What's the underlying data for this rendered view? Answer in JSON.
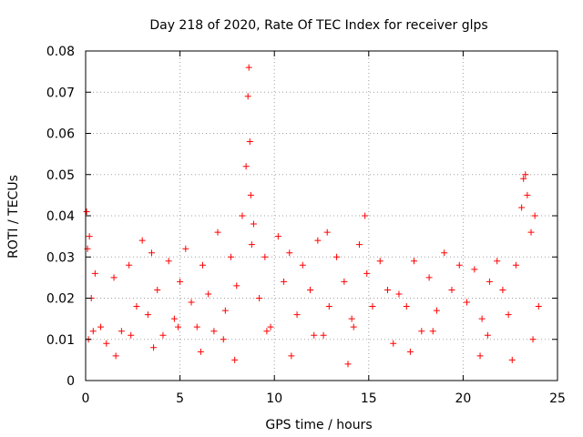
{
  "chart_data": {
    "type": "scatter",
    "title": "Day 218 of 2020, Rate Of TEC Index for receiver glps",
    "xlabel": "GPS time / hours",
    "ylabel": "ROTI / TECUs",
    "xlim": [
      0,
      25
    ],
    "ylim": [
      0,
      0.08
    ],
    "x_ticks": [
      0,
      5,
      10,
      15,
      20,
      25
    ],
    "x_tick_labels": [
      "0",
      "5",
      "10",
      "15",
      "20",
      "25"
    ],
    "y_ticks": [
      0,
      0.01,
      0.02,
      0.03,
      0.04,
      0.05,
      0.06,
      0.07,
      0.08
    ],
    "y_tick_labels": [
      "0",
      "0.01",
      "0.02",
      "0.03",
      "0.04",
      "0.05",
      "0.06",
      "0.07",
      "0.08"
    ],
    "grid": true,
    "marker": "+",
    "series": [
      {
        "name": "ROTI",
        "color": "#ff0000",
        "x": [
          0.05,
          0.1,
          0.2,
          0.3,
          0.5,
          0.8,
          1.1,
          1.5,
          1.9,
          2.3,
          2.7,
          3.0,
          3.3,
          3.5,
          3.8,
          4.1,
          4.4,
          4.7,
          5.0,
          5.3,
          5.6,
          5.9,
          6.2,
          6.5,
          6.8,
          7.0,
          7.4,
          7.7,
          8.0,
          8.3,
          8.5,
          8.6,
          8.65,
          8.7,
          8.75,
          8.8,
          8.9,
          9.2,
          9.5,
          9.8,
          10.2,
          10.5,
          10.8,
          11.2,
          11.5,
          11.9,
          12.3,
          12.6,
          12.8,
          12.9,
          13.3,
          13.7,
          14.1,
          14.5,
          14.8,
          14.9,
          15.2,
          15.6,
          16.0,
          16.3,
          16.6,
          17.0,
          17.4,
          17.8,
          18.2,
          18.6,
          19.0,
          19.4,
          19.8,
          20.2,
          20.6,
          21.0,
          21.4,
          21.8,
          22.1,
          22.4,
          22.8,
          23.1,
          23.2,
          23.3,
          23.4,
          23.6,
          23.8,
          24.0,
          0.15,
          1.6,
          3.6,
          6.1,
          7.9,
          10.9,
          13.9,
          17.2,
          20.9,
          22.6,
          0.4,
          2.4,
          4.9,
          7.3,
          9.6,
          12.1,
          14.2,
          18.4,
          21.3,
          23.7
        ],
        "y": [
          0.041,
          0.032,
          0.035,
          0.02,
          0.026,
          0.013,
          0.009,
          0.025,
          0.012,
          0.028,
          0.018,
          0.034,
          0.016,
          0.031,
          0.022,
          0.011,
          0.029,
          0.015,
          0.024,
          0.032,
          0.019,
          0.013,
          0.028,
          0.021,
          0.012,
          0.036,
          0.017,
          0.03,
          0.023,
          0.04,
          0.052,
          0.069,
          0.076,
          0.058,
          0.045,
          0.033,
          0.038,
          0.02,
          0.03,
          0.013,
          0.035,
          0.024,
          0.031,
          0.016,
          0.028,
          0.022,
          0.034,
          0.011,
          0.036,
          0.018,
          0.03,
          0.024,
          0.015,
          0.033,
          0.04,
          0.026,
          0.018,
          0.029,
          0.022,
          0.009,
          0.021,
          0.018,
          0.029,
          0.012,
          0.025,
          0.017,
          0.031,
          0.022,
          0.028,
          0.019,
          0.027,
          0.015,
          0.024,
          0.029,
          0.022,
          0.016,
          0.028,
          0.042,
          0.049,
          0.05,
          0.045,
          0.036,
          0.04,
          0.018,
          0.01,
          0.006,
          0.008,
          0.007,
          0.005,
          0.006,
          0.004,
          0.007,
          0.006,
          0.005,
          0.012,
          0.011,
          0.013,
          0.01,
          0.012,
          0.011,
          0.013,
          0.012,
          0.011,
          0.01
        ]
      }
    ]
  }
}
